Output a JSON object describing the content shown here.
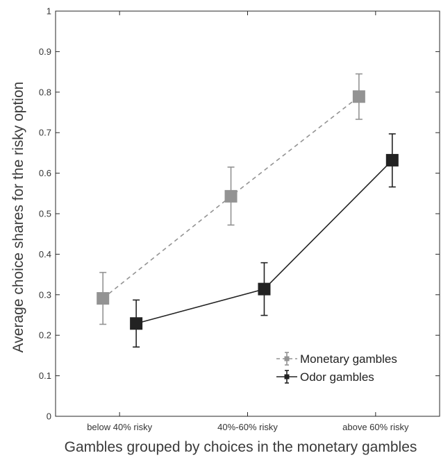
{
  "chart_data": {
    "type": "line",
    "title": "",
    "xlabel": "Gambles grouped by choices in the monetary gambles",
    "ylabel": "Average choice shares for the risky option",
    "categories": [
      "below 40% risky",
      "40%-60% risky",
      "above 60% risky"
    ],
    "ylim": [
      0,
      1
    ],
    "yticks": [
      "0",
      "0.1",
      "0.2",
      "0.3",
      "0.4",
      "0.5",
      "0.6",
      "0.7",
      "0.8",
      "0.9",
      "1"
    ],
    "grid": false,
    "legend_position": "bottom-right",
    "series": [
      {
        "name": "Monetary gambles",
        "color": "#939393",
        "line_style": "dashed",
        "marker": "square",
        "values": [
          0.291,
          0.543,
          0.789
        ],
        "err_low": [
          0.227,
          0.472,
          0.733
        ],
        "err_high": [
          0.355,
          0.615,
          0.845
        ]
      },
      {
        "name": "Odor gambles",
        "color": "#222222",
        "line_style": "solid",
        "marker": "square",
        "values": [
          0.229,
          0.314,
          0.632
        ],
        "err_low": [
          0.171,
          0.249,
          0.566
        ],
        "err_high": [
          0.287,
          0.379,
          0.697
        ]
      }
    ]
  }
}
